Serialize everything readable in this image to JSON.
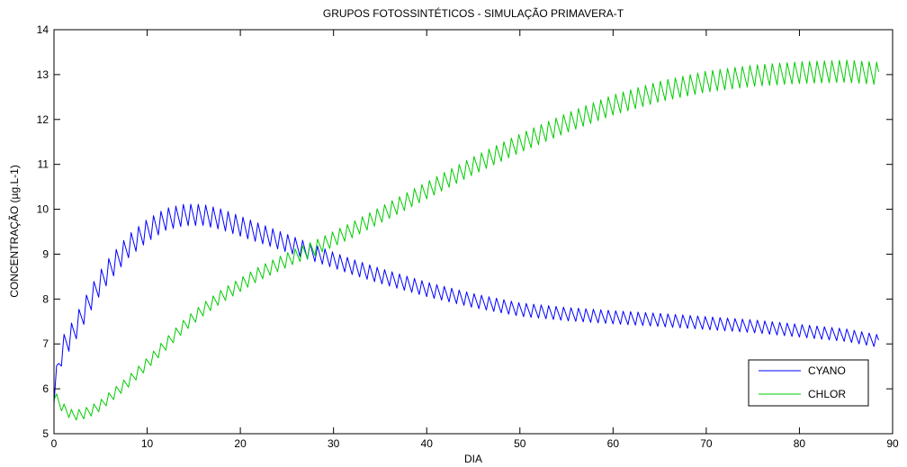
{
  "chart_data": {
    "type": "line",
    "title": "GRUPOS FOTOSSINTÉTICOS - SIMULAÇÃO PRIMAVERA-T",
    "xlabel": "DIA",
    "ylabel": "CONCENTRAÇÃO  (µg.L-1)",
    "xlim": [
      0,
      90
    ],
    "ylim": [
      5,
      14
    ],
    "xticks": [
      "0",
      "10",
      "20",
      "30",
      "40",
      "50",
      "60",
      "70",
      "80",
      "90"
    ],
    "yticks": [
      "5",
      "6",
      "7",
      "8",
      "9",
      "10",
      "11",
      "12",
      "13",
      "14"
    ],
    "grid": false,
    "legend_position": "bottom-right",
    "series": [
      {
        "name": "CYANO",
        "color": "#0000ff",
        "baseline": {
          "x": [
            0,
            0.5,
            1,
            2,
            3,
            4,
            5,
            6,
            8,
            10,
            12,
            14,
            16,
            18,
            20,
            22,
            24,
            26,
            28,
            30,
            32,
            35,
            40,
            45,
            50,
            55,
            60,
            65,
            70,
            75,
            80,
            85,
            88.5
          ],
          "y": [
            5.9,
            6.5,
            6.9,
            7.2,
            7.6,
            8.0,
            8.35,
            8.65,
            9.15,
            9.5,
            9.75,
            9.85,
            9.85,
            9.75,
            9.6,
            9.45,
            9.3,
            9.15,
            9.0,
            8.85,
            8.7,
            8.5,
            8.2,
            7.95,
            7.75,
            7.65,
            7.58,
            7.52,
            7.45,
            7.38,
            7.28,
            7.18,
            7.05
          ]
        },
        "amplitude": {
          "x": [
            0,
            2,
            10,
            20,
            30,
            50,
            88.5
          ],
          "y": [
            0.5,
            0.55,
            0.5,
            0.45,
            0.35,
            0.3,
            0.28
          ]
        },
        "cycle_days": 0.8
      },
      {
        "name": "CHLOR",
        "color": "#00cc00",
        "baseline": {
          "x": [
            0,
            1,
            2,
            3,
            4,
            5,
            6,
            8,
            10,
            12,
            14,
            16,
            18,
            20,
            22,
            24,
            26,
            28,
            30,
            32,
            35,
            40,
            45,
            50,
            55,
            60,
            65,
            70,
            75,
            80,
            85,
            88.5
          ],
          "y": [
            5.85,
            5.55,
            5.4,
            5.42,
            5.5,
            5.62,
            5.8,
            6.15,
            6.55,
            6.98,
            7.4,
            7.75,
            8.05,
            8.3,
            8.55,
            8.75,
            8.95,
            9.12,
            9.32,
            9.52,
            9.85,
            10.4,
            10.95,
            11.45,
            11.9,
            12.3,
            12.6,
            12.82,
            12.95,
            13.02,
            13.05,
            13.0
          ]
        },
        "amplitude": {
          "x": [
            0,
            20,
            40,
            60,
            88.5
          ],
          "y": [
            0.22,
            0.3,
            0.38,
            0.45,
            0.5
          ]
        },
        "cycle_days": 0.8
      }
    ]
  }
}
